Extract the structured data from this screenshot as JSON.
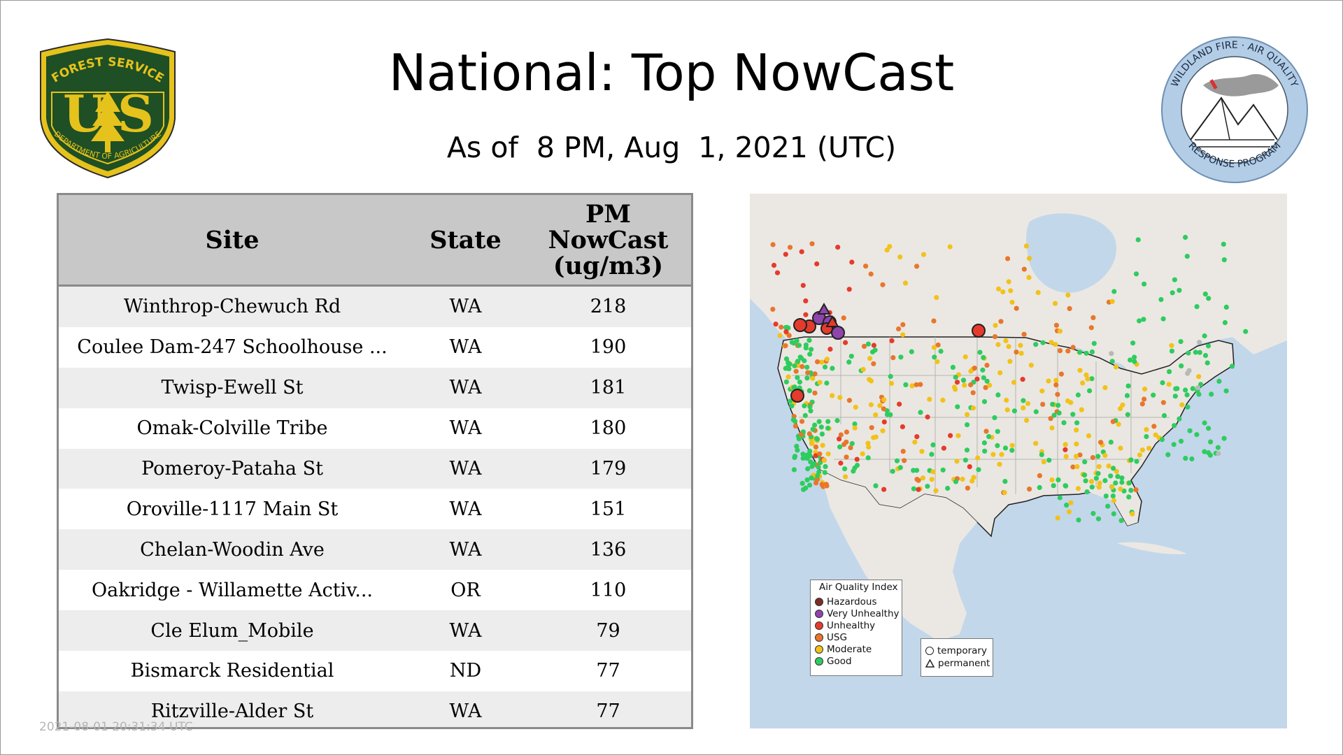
{
  "header": {
    "title": "National: Top NowCast",
    "subtitle": "As of  8 PM, Aug  1, 2021 (UTC)"
  },
  "logos": {
    "left": {
      "lines": [
        "FOREST SERVICE",
        "U S",
        "DEPARTMENT OF AGRICULTURE"
      ]
    },
    "right": {
      "lines": [
        "WILDLAND FIRE · AIR QUALITY",
        "RESPONSE PROGRAM"
      ]
    }
  },
  "timestamp": "2021-08-01 20:31:34 UTC",
  "table": {
    "headers": {
      "site": "Site",
      "state": "State",
      "pm_lines": [
        "PM",
        "NowCast",
        "(ug/m3)"
      ]
    },
    "rows": [
      {
        "site": "Winthrop-Chewuch Rd",
        "state": "WA",
        "pm": "218"
      },
      {
        "site": "Coulee Dam-247 Schoolhouse ...",
        "state": "WA",
        "pm": "190"
      },
      {
        "site": "Twisp-Ewell St",
        "state": "WA",
        "pm": "181"
      },
      {
        "site": "Omak-Colville Tribe",
        "state": "WA",
        "pm": "180"
      },
      {
        "site": "Pomeroy-Pataha St",
        "state": "WA",
        "pm": "179"
      },
      {
        "site": "Oroville-1117 Main St",
        "state": "WA",
        "pm": "151"
      },
      {
        "site": "Chelan-Woodin Ave",
        "state": "WA",
        "pm": "136"
      },
      {
        "site": "Oakridge - Willamette Activ...",
        "state": "OR",
        "pm": "110"
      },
      {
        "site": "Cle Elum_Mobile",
        "state": "WA",
        "pm": "79"
      },
      {
        "site": "Bismarck Residential",
        "state": "ND",
        "pm": "77"
      },
      {
        "site": "Ritzville-Alder St",
        "state": "WA",
        "pm": "77"
      }
    ]
  },
  "map": {
    "legend_title": "Air Quality Index",
    "aqi_levels": [
      {
        "label": "Hazardous",
        "color": "#7b2d26"
      },
      {
        "label": "Very Unhealthy",
        "color": "#8e44ad"
      },
      {
        "label": "Unhealthy",
        "color": "#e53b2c"
      },
      {
        "label": "USG",
        "color": "#e8762b"
      },
      {
        "label": "Moderate",
        "color": "#f2c21a"
      },
      {
        "label": "Good",
        "color": "#2ecc5f"
      }
    ],
    "shape_legend": {
      "temporary": "temporary",
      "permanent": "permanent"
    }
  }
}
